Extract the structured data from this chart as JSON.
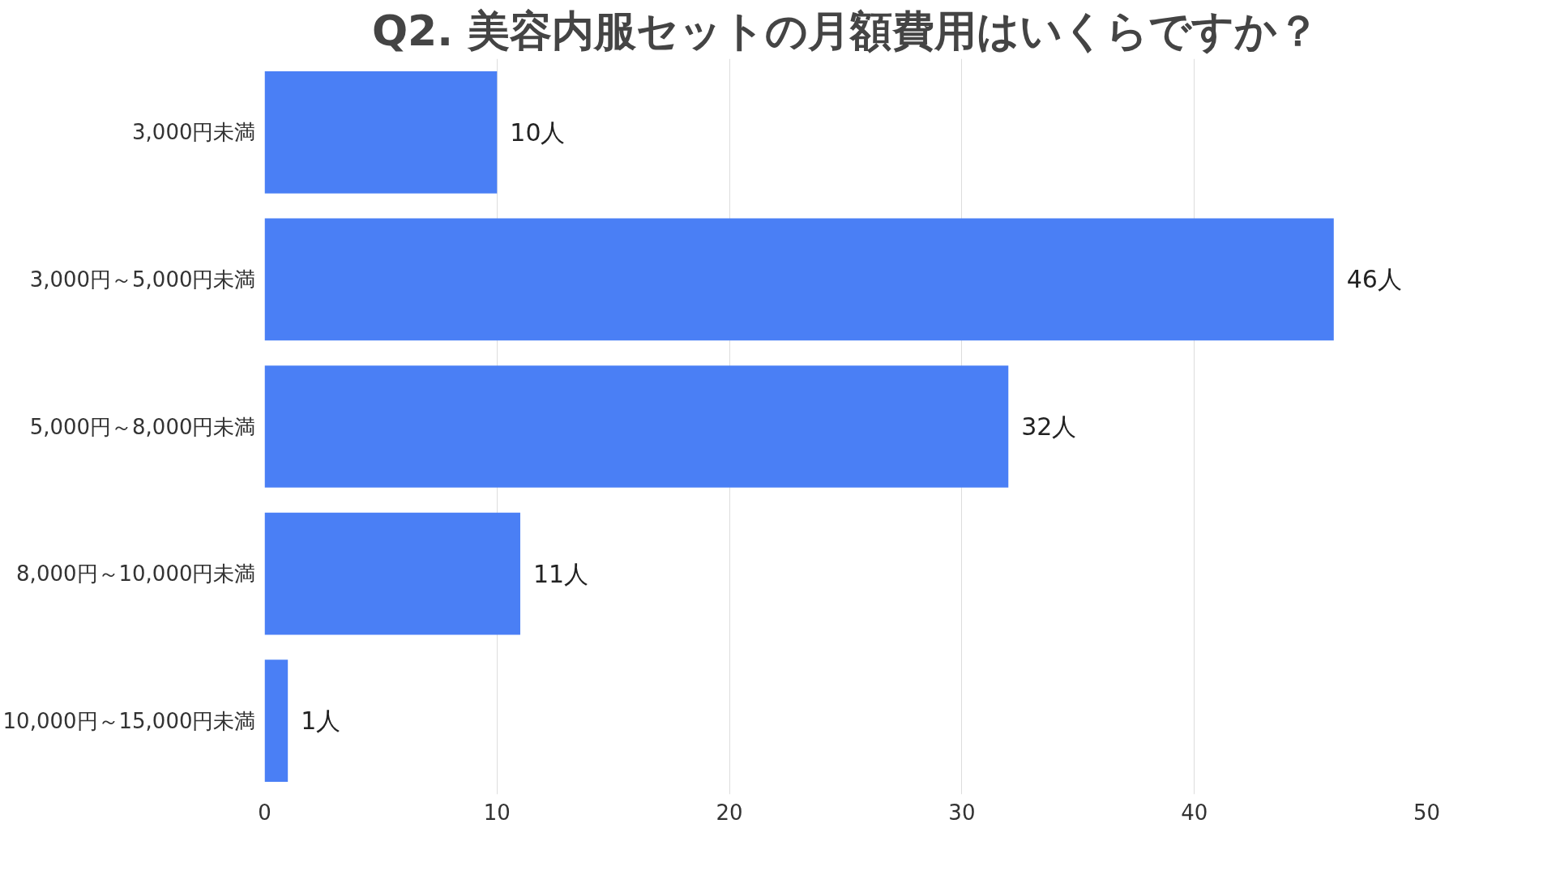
{
  "chart_data": {
    "type": "bar",
    "orientation": "horizontal",
    "title": "Q2. 美容内服セットの月額費用はいくらですか？",
    "categories": [
      "3,000円未満",
      "3,000円～5,000円未満",
      "5,000円～8,000円未満",
      "8,000円～10,000円未満",
      "10,000円～15,000円未満"
    ],
    "values": [
      10,
      46,
      32,
      11,
      1
    ],
    "value_labels": [
      "10人",
      "46人",
      "32人",
      "11人",
      "1人"
    ],
    "color": "#4a7ff5",
    "xlim": [
      0,
      50
    ],
    "xticks": [
      0,
      10,
      20,
      30,
      40,
      50
    ],
    "grid": "x"
  }
}
